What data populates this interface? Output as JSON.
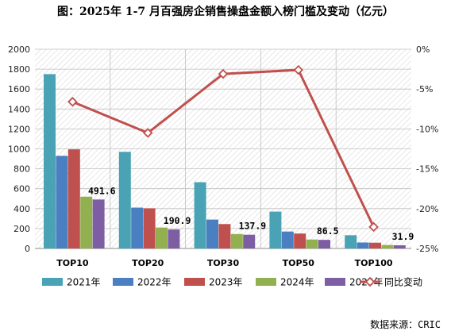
{
  "chart_data": {
    "type": "bar",
    "title": "图：2025年 1-7 月百强房企销售操盘金额入榜门槛及变动（亿元）",
    "categories": [
      "TOP10",
      "TOP20",
      "TOP30",
      "TOP50",
      "TOP100"
    ],
    "series": [
      {
        "name": "2021年",
        "type": "bar",
        "axis": "left",
        "color": "#4aa3b5",
        "values": [
          1750,
          970,
          665,
          370,
          133
        ]
      },
      {
        "name": "2022年",
        "type": "bar",
        "axis": "left",
        "color": "#4a7fc1",
        "values": [
          930,
          410,
          290,
          170,
          60
        ]
      },
      {
        "name": "2023年",
        "type": "bar",
        "axis": "left",
        "color": "#c0504d",
        "values": [
          995,
          403,
          245,
          150,
          58
        ]
      },
      {
        "name": "2024年",
        "type": "bar",
        "axis": "left",
        "color": "#92b04f",
        "values": [
          520,
          210,
          145,
          90,
          35
        ]
      },
      {
        "name": "2025年",
        "type": "bar",
        "axis": "left",
        "color": "#7e5ea3",
        "values": [
          491.6,
          190.9,
          137.9,
          86.5,
          31.9
        ]
      },
      {
        "name": "同比变动",
        "type": "line",
        "axis": "right",
        "color": "#c0504d",
        "values": [
          -6.6,
          -10.5,
          -3.1,
          -2.6,
          -22.3
        ]
      }
    ],
    "data_labels": [
      "491.6",
      "190.9",
      "137.9",
      "86.5",
      "31.9"
    ],
    "y_left": {
      "min": 0,
      "max": 2000,
      "step": 200,
      "ticks": [
        "0",
        "200",
        "400",
        "600",
        "800",
        "1000",
        "1200",
        "1400",
        "1600",
        "1800",
        "2000"
      ]
    },
    "y_right": {
      "min": -25,
      "max": 0,
      "step": 5,
      "ticks": [
        "-25%",
        "-20%",
        "-15%",
        "-10%",
        "-5%",
        "0%"
      ]
    },
    "grid": true,
    "legend_position": "bottom",
    "source": "数据来源：CRIC"
  }
}
